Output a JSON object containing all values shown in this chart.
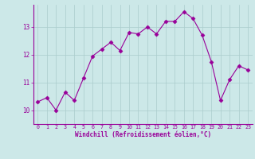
{
  "x": [
    0,
    1,
    2,
    3,
    4,
    5,
    6,
    7,
    8,
    9,
    10,
    11,
    12,
    13,
    14,
    15,
    16,
    17,
    18,
    19,
    20,
    21,
    22,
    23
  ],
  "y": [
    10.3,
    10.45,
    10.0,
    10.65,
    10.35,
    11.15,
    11.95,
    12.2,
    12.45,
    12.15,
    12.8,
    12.75,
    13.0,
    12.75,
    13.2,
    13.2,
    13.55,
    13.3,
    12.7,
    11.75,
    10.35,
    11.1,
    11.6,
    11.45
  ],
  "line_color": "#990099",
  "marker": "D",
  "marker_size": 2.5,
  "bg_color": "#cce8e8",
  "grid_color": "#aacccc",
  "xlabel": "Windchill (Refroidissement éolien,°C)",
  "xlim": [
    -0.5,
    23.5
  ],
  "ylim": [
    9.5,
    13.8
  ],
  "yticks": [
    10,
    11,
    12,
    13
  ],
  "xticks": [
    0,
    1,
    2,
    3,
    4,
    5,
    6,
    7,
    8,
    9,
    10,
    11,
    12,
    13,
    14,
    15,
    16,
    17,
    18,
    19,
    20,
    21,
    22,
    23
  ],
  "tick_color": "#990099",
  "label_color": "#990099",
  "spine_color": "#990099",
  "title_color": "#990099"
}
